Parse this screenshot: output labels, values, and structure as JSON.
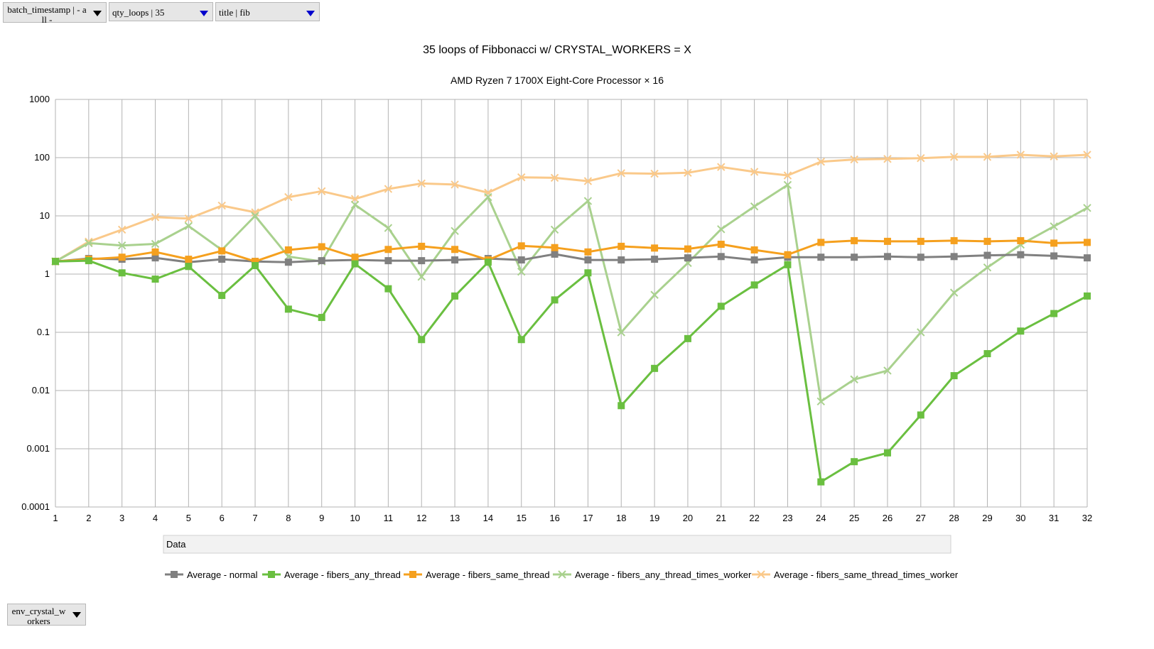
{
  "filters": {
    "batch_timestamp": "batch_timestamp | - all -",
    "qty_loops": "qty_loops | 35",
    "title": "title | fib",
    "env_crystal_workers": "env_crystal_workers"
  },
  "data_field_label": "Data",
  "chart_data": {
    "type": "line",
    "title": "35 loops of Fibbonacci w/ CRYSTAL_WORKERS = X",
    "subtitle": "AMD Ryzen 7 1700X Eight-Core Processor × 16",
    "xlabel": "",
    "ylabel": "",
    "y_scale": "log",
    "ylim": [
      0.0001,
      1000
    ],
    "y_ticks": [
      "0.0001",
      "0.001",
      "0.01",
      "0.1",
      "1",
      "10",
      "100",
      "1000"
    ],
    "grid": true,
    "legend_position": "bottom",
    "categories": [
      "1",
      "2",
      "3",
      "4",
      "5",
      "6",
      "7",
      "8",
      "9",
      "10",
      "11",
      "12",
      "13",
      "14",
      "15",
      "16",
      "17",
      "18",
      "19",
      "20",
      "21",
      "22",
      "23",
      "24",
      "25",
      "26",
      "27",
      "28",
      "29",
      "30",
      "31",
      "32"
    ],
    "series": [
      {
        "name": "Average - normal",
        "color": "#808080",
        "marker": "square",
        "values": [
          1.65,
          1.85,
          1.8,
          1.9,
          1.6,
          1.8,
          1.65,
          1.6,
          1.7,
          1.75,
          1.7,
          1.7,
          1.75,
          1.85,
          1.75,
          2.2,
          1.75,
          1.75,
          1.8,
          1.9,
          2.0,
          1.75,
          1.95,
          1.95,
          1.95,
          2.0,
          1.95,
          2.0,
          2.1,
          2.15,
          2.05,
          1.9
        ]
      },
      {
        "name": "Average - fibers_any_thread",
        "color": "#6abf40",
        "marker": "square",
        "values": [
          1.65,
          1.7,
          1.05,
          0.82,
          1.35,
          0.43,
          1.4,
          0.25,
          0.18,
          1.5,
          0.56,
          0.075,
          0.42,
          1.6,
          0.075,
          0.36,
          1.05,
          0.0055,
          0.024,
          0.078,
          0.28,
          0.65,
          1.45,
          0.00027,
          0.0006,
          0.00085,
          0.0038,
          0.018,
          0.043,
          0.105,
          0.21,
          0.42
        ]
      },
      {
        "name": "Average - fibers_same_thread",
        "color": "#f5a01e",
        "marker": "square",
        "values": [
          1.65,
          1.8,
          1.95,
          2.4,
          1.8,
          2.5,
          1.65,
          2.6,
          2.95,
          1.95,
          2.65,
          3.0,
          2.65,
          1.75,
          3.05,
          2.85,
          2.4,
          3.0,
          2.8,
          2.7,
          3.25,
          2.6,
          2.15,
          3.5,
          3.75,
          3.65,
          3.65,
          3.75,
          3.65,
          3.75,
          3.4,
          3.5
        ]
      },
      {
        "name": "Average - fibers_any_thread_times_worker",
        "color": "#a9d18e",
        "marker": "x",
        "values": [
          1.65,
          3.4,
          3.1,
          3.3,
          6.7,
          2.6,
          10.0,
          2.0,
          1.65,
          15.5,
          6.2,
          0.9,
          5.5,
          21.0,
          1.1,
          5.8,
          18.0,
          0.1,
          0.44,
          1.55,
          5.9,
          14.5,
          34.0,
          0.0065,
          0.0155,
          0.022,
          0.1,
          0.48,
          1.3,
          3.2,
          6.6,
          13.7
        ]
      },
      {
        "name": "Average - fibers_same_thread_times_worker",
        "color": "#fac98a",
        "marker": "x",
        "values": [
          1.65,
          3.6,
          5.8,
          9.5,
          9.0,
          15.0,
          11.5,
          21.0,
          26.5,
          19.5,
          29.0,
          36.0,
          34.5,
          25.0,
          46.0,
          45.0,
          39.5,
          54.0,
          53.0,
          55.0,
          69.0,
          57.0,
          49.5,
          85.0,
          93.0,
          95.0,
          98.0,
          103.0,
          103.0,
          112.0,
          105.0,
          112.0
        ]
      }
    ]
  }
}
